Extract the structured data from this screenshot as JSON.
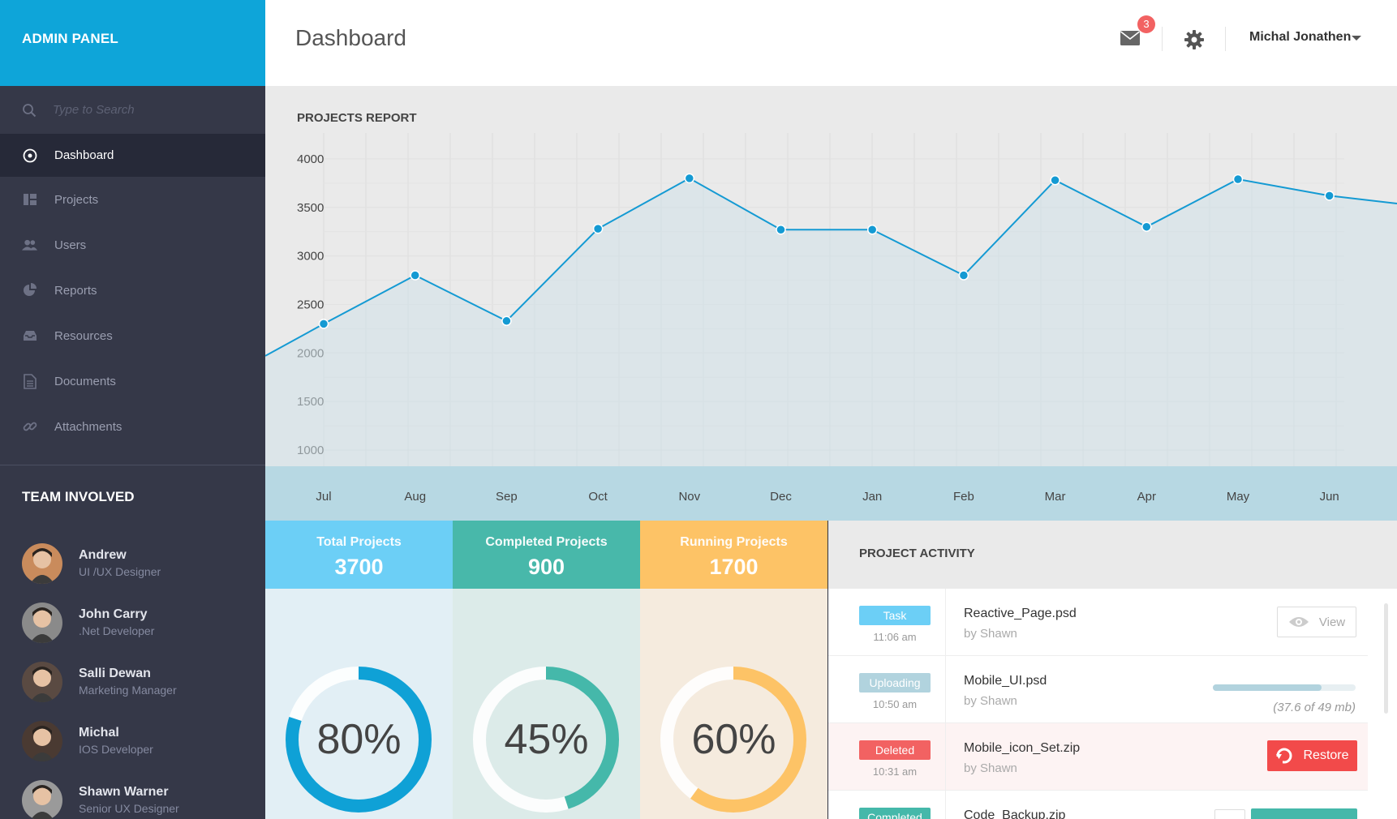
{
  "sidebar": {
    "brand": "ADMIN PANEL",
    "search_placeholder": "Type to Search",
    "nav": [
      {
        "label": "Dashboard",
        "icon": "dashboard-icon",
        "active": true
      },
      {
        "label": "Projects",
        "icon": "projects-icon"
      },
      {
        "label": "Users",
        "icon": "users-icon"
      },
      {
        "label": "Reports",
        "icon": "pie-chart-icon"
      },
      {
        "label": "Resources",
        "icon": "inbox-icon"
      },
      {
        "label": "Documents",
        "icon": "document-icon"
      },
      {
        "label": "Attachments",
        "icon": "link-icon"
      }
    ],
    "team_title": "TEAM INVOLVED",
    "team": [
      {
        "name": "Andrew",
        "role": "UI /UX Designer"
      },
      {
        "name": "John Carry",
        "role": ".Net Developer"
      },
      {
        "name": "Salli Dewan",
        "role": "Marketing Manager"
      },
      {
        "name": "Michal",
        "role": "IOS Developer"
      },
      {
        "name": "Shawn Warner",
        "role": "Senior UX Designer"
      }
    ]
  },
  "header": {
    "title": "Dashboard",
    "mail_count": "3",
    "user_name": "Michal Jonathen"
  },
  "chart_title": "PROJECTS REPORT",
  "chart_data": {
    "type": "area",
    "title": "PROJECTS REPORT",
    "categories": [
      "Jul",
      "Aug",
      "Sep",
      "Oct",
      "Nov",
      "Dec",
      "Jan",
      "Feb",
      "Mar",
      "Apr",
      "May",
      "Jun"
    ],
    "values": [
      2300,
      2800,
      2330,
      3280,
      3800,
      3270,
      3270,
      2800,
      3780,
      3300,
      3790,
      3620
    ],
    "y_ticks": [
      "4000",
      "3500",
      "3000",
      "2500",
      "2000",
      "1500",
      "1000"
    ],
    "ylim": [
      1000,
      4000
    ],
    "line_color": "#149ad3",
    "grid": true
  },
  "stats": [
    {
      "label": "Total Projects",
      "value": "3700",
      "percent": "80%",
      "fraction": 0.8,
      "color": "#0fa1d6",
      "head_bg": "#6ccff6",
      "body_bg": "#e2eff5"
    },
    {
      "label": "Completed Projects",
      "value": "900",
      "percent": "45%",
      "fraction": 0.45,
      "color": "#45b8aa",
      "head_bg": "#48b8aa",
      "body_bg": "#dcebe9"
    },
    {
      "label": "Running Projects",
      "value": "1700",
      "percent": "60%",
      "fraction": 0.6,
      "color": "#fdc366",
      "head_bg": "#fdc366",
      "body_bg": "#f5ebde"
    }
  ],
  "activity": {
    "title": "PROJECT ACTIVITY",
    "rows": [
      {
        "badge": "Task",
        "badge_color": "#6ccff6",
        "time": "11:06 am",
        "file": "Reactive_Page.psd",
        "by": "by Shawn",
        "action": "View"
      },
      {
        "badge": "Uploading",
        "badge_color": "#b1d3de",
        "time": "10:50 am",
        "file": "Mobile_UI.psd",
        "by": "by Shawn",
        "progress": 0.76,
        "progress_text": "(37.6 of 49 mb)"
      },
      {
        "badge": "Deleted",
        "badge_color": "#f26262",
        "time": "10:31 am",
        "file": "Mobile_icon_Set.zip",
        "by": "by Shawn",
        "action": "Restore"
      },
      {
        "badge": "Completed",
        "badge_color": "#45b8aa",
        "time": "",
        "file": "Code_Backup.zip",
        "by": ""
      }
    ]
  }
}
